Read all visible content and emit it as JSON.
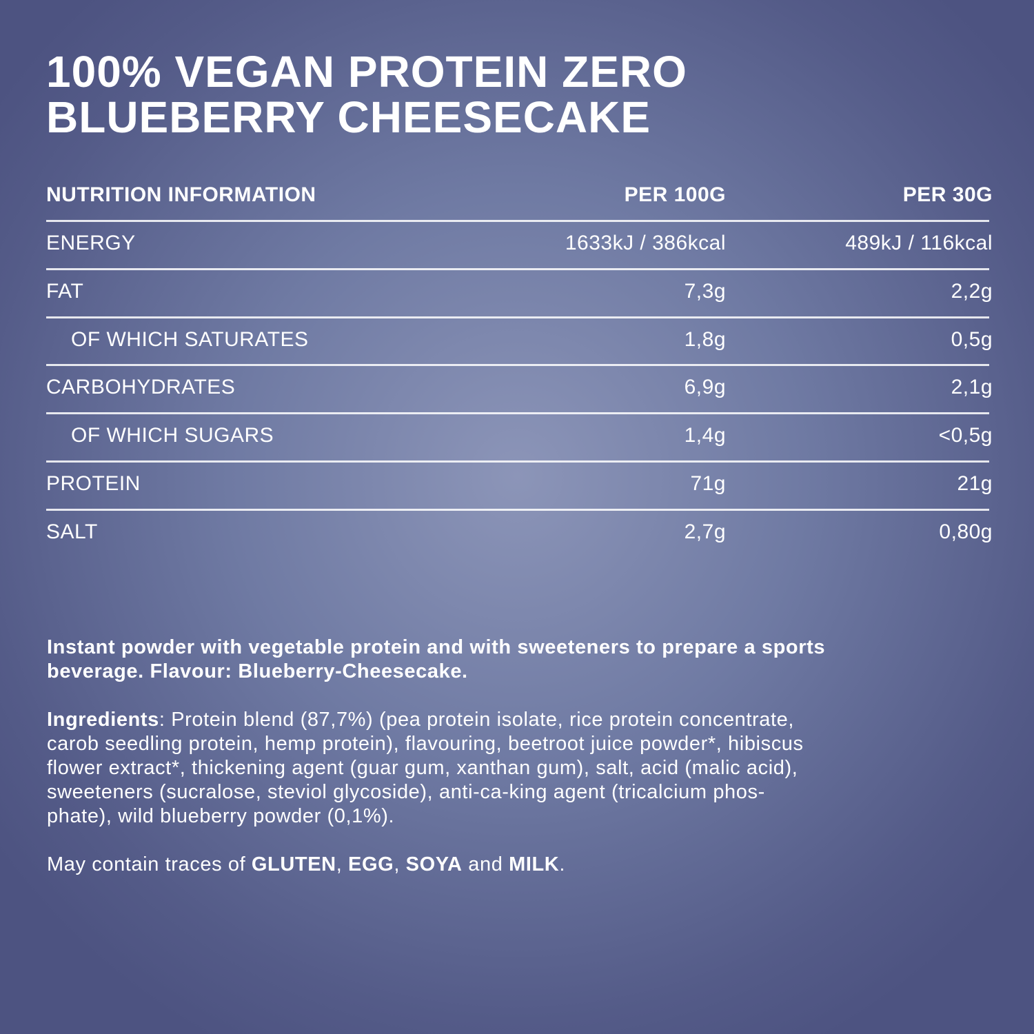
{
  "title": [
    "100% VEGAN PROTEIN ZERO",
    "BLUEBERRY CHEESECAKE"
  ],
  "table": {
    "header": [
      "NUTRITION INFORMATION",
      "PER 100G",
      "PER 30G"
    ],
    "rows": [
      {
        "name": "ENERGY",
        "per100": "1633kJ / 386kcal",
        "per30": "489kJ / 116kcal",
        "sub": false
      },
      {
        "name": "FAT",
        "per100": "7,3g",
        "per30": "2,2g",
        "sub": false
      },
      {
        "name": "OF WHICH SATURATES",
        "per100": "1,8g",
        "per30": "0,5g",
        "sub": true
      },
      {
        "name": "CARBOHYDRATES",
        "per100": "6,9g",
        "per30": "2,1g",
        "sub": false
      },
      {
        "name": "OF WHICH SUGARS",
        "per100": "1,4g",
        "per30": "<0,5g",
        "sub": true
      },
      {
        "name": "PROTEIN",
        "per100": "71g",
        "per30": "21g",
        "sub": false
      },
      {
        "name": "SALT",
        "per100": "2,7g",
        "per30": "0,80g",
        "sub": false
      }
    ]
  },
  "description": [
    "Instant powder with vegetable protein and with sweeteners to prepare a sports",
    "beverage. Flavour: Blueberry-Cheesecake."
  ],
  "ingredients": {
    "label": "Ingredients",
    "lines": [
      ": Protein blend (87,7%) (pea protein isolate, rice protein concentrate,",
      "carob seedling protein, hemp protein), flavouring, beetroot juice powder*, hibiscus",
      "flower extract*, thickening agent (guar gum, xanthan gum), salt, acid (malic acid),",
      "sweeteners (sucralose, steviol glycoside), anti-ca-king agent (tricalcium phos-",
      "phate), wild blueberry powder (0,1%)."
    ]
  },
  "allergens": [
    {
      "text": "May contain traces of ",
      "bold": false
    },
    {
      "text": "GLUTEN",
      "bold": true
    },
    {
      "text": ", ",
      "bold": false
    },
    {
      "text": "EGG",
      "bold": true
    },
    {
      "text": ", ",
      "bold": false
    },
    {
      "text": "SOYA",
      "bold": true
    },
    {
      "text": " and ",
      "bold": false
    },
    {
      "text": "MILK",
      "bold": true
    },
    {
      "text": ".",
      "bold": false
    }
  ]
}
